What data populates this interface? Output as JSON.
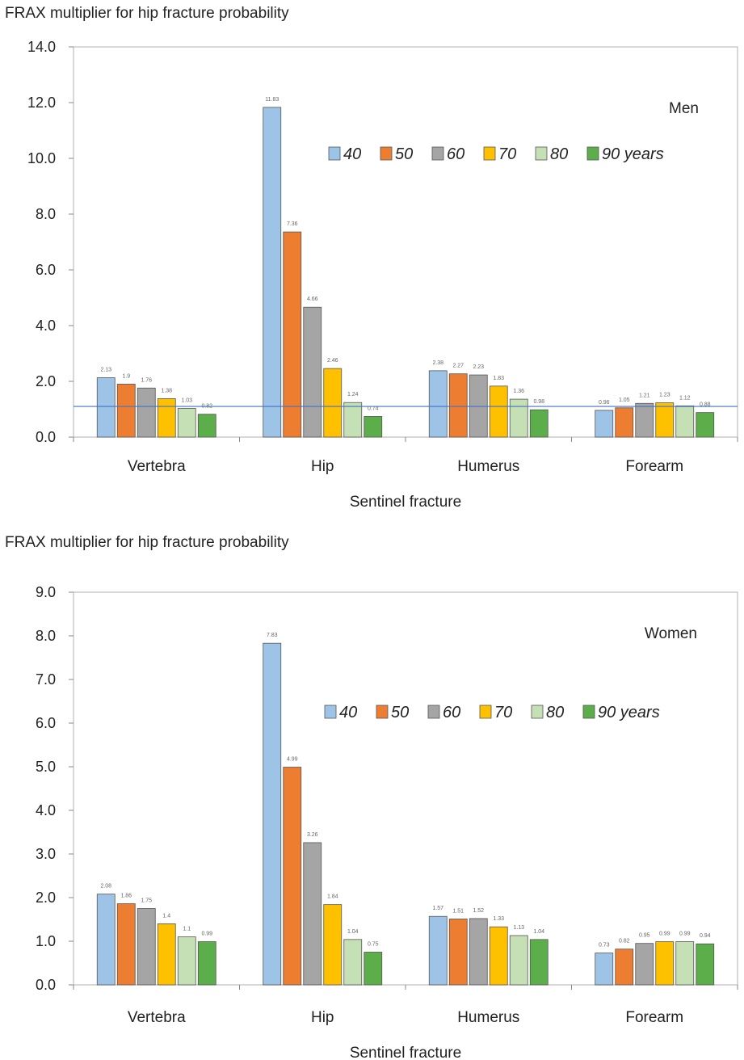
{
  "chart_data": [
    {
      "type": "bar",
      "title": "FRAX multiplier for hip fracture probability",
      "panel_label": "Men",
      "xlabel": "Sentinel fracture",
      "ylabel": "",
      "ylim": [
        0,
        14
      ],
      "yticks": [
        "0.0",
        "2.0",
        "4.0",
        "6.0",
        "8.0",
        "10.0",
        "12.0",
        "14.0"
      ],
      "ytick_values": [
        0,
        2,
        4,
        6,
        8,
        10,
        12,
        14
      ],
      "reference_line": 1.1,
      "categories": [
        "Vertebra",
        "Hip",
        "Humerus",
        "Forearm"
      ],
      "series": [
        {
          "name": "40",
          "color": "#9dc3e6",
          "values": [
            2.13,
            11.83,
            2.38,
            0.96
          ]
        },
        {
          "name": "50",
          "color": "#ed7d31",
          "values": [
            1.9,
            7.36,
            2.27,
            1.05
          ]
        },
        {
          "name": "60",
          "color": "#a5a5a5",
          "values": [
            1.76,
            4.66,
            2.23,
            1.21
          ]
        },
        {
          "name": "70",
          "color": "#ffc000",
          "values": [
            1.38,
            2.46,
            1.83,
            1.23
          ]
        },
        {
          "name": "80",
          "color": "#c5e0b4",
          "values": [
            1.03,
            1.24,
            1.36,
            1.12
          ]
        },
        {
          "name": "90 years",
          "color": "#5cae4a",
          "values": [
            0.82,
            0.74,
            0.98,
            0.88
          ]
        }
      ],
      "legend_placement": "top-right",
      "grid": false
    },
    {
      "type": "bar",
      "title": "FRAX multiplier for hip fracture probability",
      "panel_label": "Women",
      "xlabel": "Sentinel fracture",
      "ylabel": "",
      "ylim": [
        0,
        9
      ],
      "yticks": [
        "0.0",
        "1.0",
        "2.0",
        "3.0",
        "4.0",
        "5.0",
        "6.0",
        "7.0",
        "8.0",
        "9.0"
      ],
      "ytick_values": [
        0,
        1,
        2,
        3,
        4,
        5,
        6,
        7,
        8,
        9
      ],
      "categories": [
        "Vertebra",
        "Hip",
        "Humerus",
        "Forearm"
      ],
      "series": [
        {
          "name": "40",
          "color": "#9dc3e6",
          "values": [
            2.08,
            7.83,
            1.57,
            0.73
          ]
        },
        {
          "name": "50",
          "color": "#ed7d31",
          "values": [
            1.86,
            4.99,
            1.51,
            0.82
          ]
        },
        {
          "name": "60",
          "color": "#a5a5a5",
          "values": [
            1.75,
            3.26,
            1.52,
            0.95
          ]
        },
        {
          "name": "70",
          "color": "#ffc000",
          "values": [
            1.4,
            1.84,
            1.33,
            0.99
          ]
        },
        {
          "name": "80",
          "color": "#c5e0b4",
          "values": [
            1.1,
            1.04,
            1.13,
            0.99
          ]
        },
        {
          "name": "90 years",
          "color": "#5cae4a",
          "values": [
            0.99,
            0.75,
            1.04,
            0.94
          ]
        }
      ],
      "legend_placement": "top-right",
      "grid": false
    }
  ]
}
